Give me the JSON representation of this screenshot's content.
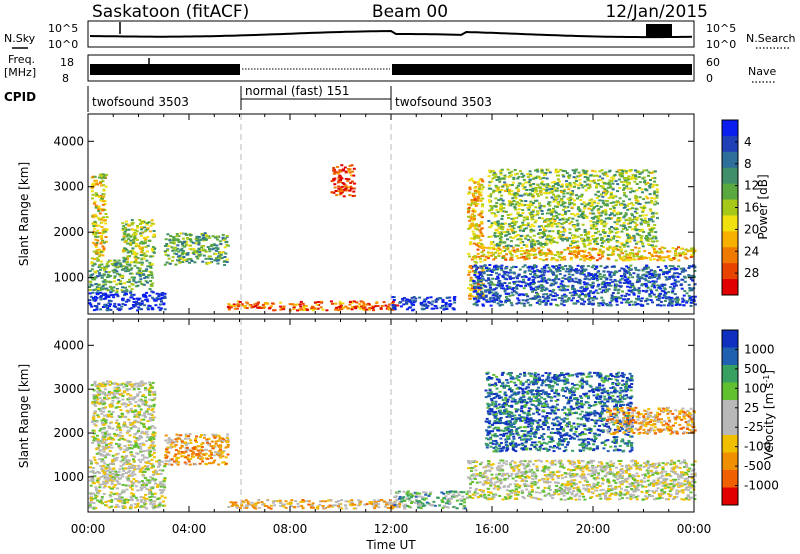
{
  "header": {
    "station": "Saskatoon (fitACF)",
    "beam": "Beam 00",
    "date": "12/Jan/2015"
  },
  "top_panels": {
    "nsky": {
      "label": "N.Sky",
      "ticks": [
        "10^5",
        "10^0"
      ],
      "right_label": "N.Search",
      "right_ticks": [
        "10^5",
        "10^0"
      ]
    },
    "freq": {
      "label_top": "Freq.",
      "label_bottom": "[MHz]",
      "ticks": [
        "18",
        "8"
      ],
      "right_label": "Nave",
      "right_ticks": [
        "60",
        "0"
      ]
    },
    "cpid": {
      "label": "CPID",
      "segments": [
        {
          "label": "twofsound 3503",
          "start_h": 0,
          "end_h": 6
        },
        {
          "label": "normal (fast) 151",
          "start_h": 6,
          "end_h": 12
        },
        {
          "label": "twofsound 3503",
          "start_h": 12,
          "end_h": 24
        }
      ]
    }
  },
  "chart_data": [
    {
      "type": "heatmap",
      "name": "power",
      "ylabel": "Slant Range [km]",
      "ylim": [
        200,
        4600
      ],
      "yticks": [
        "1000",
        "2000",
        "3000",
        "4000"
      ],
      "xlim": [
        0,
        24
      ],
      "colorbar_label": "Power [dB]",
      "colorbar_ticks": [
        "4",
        "8",
        "12",
        "16",
        "20",
        "24",
        "28"
      ],
      "colorbar_colors": [
        "#0a1ef0",
        "#2040b8",
        "#2e6e9a",
        "#3f8f6a",
        "#5aa840",
        "#a6c818",
        "#f0e010",
        "#f8b000",
        "#f07a00",
        "#e84400",
        "#e00000"
      ],
      "regions": [
        {
          "t0": 0.0,
          "t1": 3.0,
          "r0": 300,
          "r1": 700,
          "level": 0.93
        },
        {
          "t0": 0.0,
          "t1": 2.5,
          "r0": 700,
          "r1": 1400,
          "level": 0.62
        },
        {
          "t0": 0.1,
          "t1": 0.7,
          "r0": 1400,
          "r1": 3300,
          "level": 0.42
        },
        {
          "t0": 1.3,
          "t1": 2.6,
          "r0": 1400,
          "r1": 2300,
          "level": 0.5
        },
        {
          "t0": 3.0,
          "t1": 5.5,
          "r0": 1300,
          "r1": 2000,
          "level": 0.6
        },
        {
          "t0": 9.6,
          "t1": 10.5,
          "r0": 2800,
          "r1": 3500,
          "level": 0.1
        },
        {
          "t0": 5.5,
          "t1": 12.3,
          "r0": 300,
          "r1": 500,
          "level": 0.2
        },
        {
          "t0": 12.0,
          "t1": 14.5,
          "r0": 300,
          "r1": 600,
          "level": 0.92
        },
        {
          "t0": 15.0,
          "t1": 15.6,
          "r0": 500,
          "r1": 3200,
          "level": 0.35
        },
        {
          "t0": 15.2,
          "t1": 24.0,
          "r0": 400,
          "r1": 1300,
          "level": 0.82
        },
        {
          "t0": 15.6,
          "t1": 24.0,
          "r0": 1400,
          "r1": 1700,
          "level": 0.35
        },
        {
          "t0": 15.8,
          "t1": 22.5,
          "r0": 1700,
          "r1": 3400,
          "level": 0.55
        }
      ]
    },
    {
      "type": "heatmap",
      "name": "velocity",
      "ylabel": "Slant Range [km]",
      "ylim": [
        200,
        4600
      ],
      "yticks": [
        "1000",
        "2000",
        "3000",
        "4000"
      ],
      "xlim": [
        0,
        24
      ],
      "xlabel": "Time UT",
      "xticks": [
        "00:00",
        "04:00",
        "08:00",
        "12:00",
        "16:00",
        "20:00",
        "00:00"
      ],
      "colorbar_label": "Velocity [m s",
      "colorbar_label_sup": "-1",
      "colorbar_label_end": "]",
      "colorbar_ticks": [
        "1000",
        "500",
        "100",
        "25",
        "-25",
        "-100",
        "-500",
        "-1000"
      ],
      "colorbar_colors": [
        "#1030c0",
        "#2060b0",
        "#38a060",
        "#60c030",
        "#b8b8b8",
        "#b8b8b8",
        "#f0c000",
        "#f09000",
        "#f06000",
        "#e00000"
      ],
      "regions": [
        {
          "t0": 0.0,
          "t1": 3.0,
          "r0": 300,
          "r1": 1400,
          "level": 0.5
        },
        {
          "t0": 0.1,
          "t1": 2.6,
          "r0": 1400,
          "r1": 3200,
          "level": 0.5
        },
        {
          "t0": 3.0,
          "t1": 5.5,
          "r0": 1300,
          "r1": 2000,
          "level": 0.3
        },
        {
          "t0": 5.5,
          "t1": 12.5,
          "r0": 300,
          "r1": 500,
          "level": 0.35
        },
        {
          "t0": 12.0,
          "t1": 15.0,
          "r0": 300,
          "r1": 700,
          "level": 0.65
        },
        {
          "t0": 15.0,
          "t1": 24.0,
          "r0": 500,
          "r1": 1400,
          "level": 0.5
        },
        {
          "t0": 15.7,
          "t1": 21.5,
          "r0": 1600,
          "r1": 3400,
          "level": 0.85
        },
        {
          "t0": 20.5,
          "t1": 24.0,
          "r0": 2000,
          "r1": 2600,
          "level": 0.3
        }
      ]
    }
  ]
}
